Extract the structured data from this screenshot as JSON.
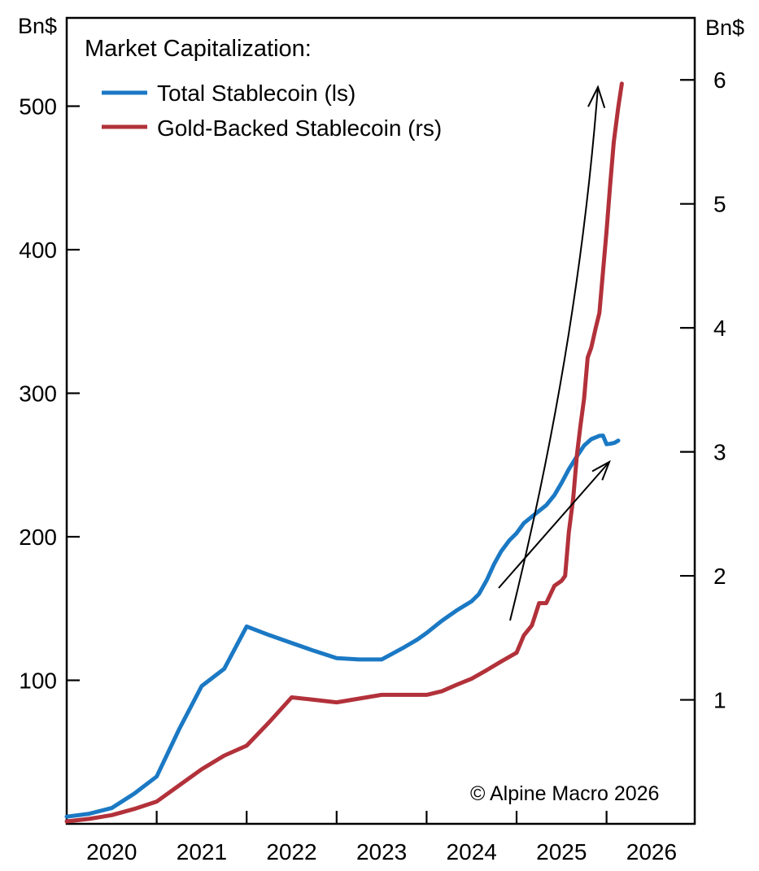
{
  "title": "Market Capitalization:",
  "copyright": "© Alpine Macro 2026",
  "colors": {
    "total_stablecoin": "#1b79c4",
    "gold_stablecoin": "#b2313a",
    "annotation": "#000000"
  },
  "legend": [
    {
      "label": "Total Stablecoin (ls)",
      "color": "#1b79c4"
    },
    {
      "label": "Gold-Backed Stablecoin (rs)",
      "color": "#b2313a"
    }
  ],
  "left_axis": {
    "unit": "Bn$",
    "ticks": [
      500,
      400,
      300,
      200,
      100
    ],
    "range": [
      0,
      561.5
    ]
  },
  "right_axis": {
    "unit": "Bn$",
    "ticks": [
      6,
      5,
      4,
      3,
      2,
      1
    ],
    "range": [
      0,
      6.5
    ]
  },
  "x_axis": {
    "range": [
      2020,
      2026.98
    ],
    "boundary_tick_years": [
      2021,
      2022,
      2023,
      2024,
      2025,
      2026
    ],
    "year_labels": [
      "2020",
      "2021",
      "2022",
      "2023",
      "2024",
      "2025",
      "2026"
    ]
  },
  "chart_data": {
    "type": "line",
    "title": "Market Capitalization:",
    "xlabel": "",
    "ylabel_left": "Bn$",
    "ylabel_right": "Bn$",
    "xlim": [
      2020,
      2026.98
    ],
    "left_ylim": [
      0,
      561.5
    ],
    "right_ylim": [
      0,
      6.5
    ],
    "grid": false,
    "legend_position": "upper-left-inside",
    "series": [
      {
        "name": "Total Stablecoin (ls)",
        "axis": "left",
        "color": "#1b79c4",
        "width": 5,
        "points": [
          [
            2020.0,
            5
          ],
          [
            2020.25,
            7
          ],
          [
            2020.5,
            11
          ],
          [
            2020.75,
            21
          ],
          [
            2021.0,
            33
          ],
          [
            2021.25,
            66
          ],
          [
            2021.5,
            96
          ],
          [
            2021.75,
            108
          ],
          [
            2022.0,
            137.5
          ],
          [
            2022.25,
            131.5
          ],
          [
            2022.5,
            126
          ],
          [
            2022.75,
            120.5
          ],
          [
            2023.0,
            115.5
          ],
          [
            2023.25,
            114.5
          ],
          [
            2023.5,
            114.5
          ],
          [
            2023.75,
            123
          ],
          [
            2023.9,
            128.5
          ],
          [
            2024.0,
            133
          ],
          [
            2024.08,
            137
          ],
          [
            2024.17,
            141.5
          ],
          [
            2024.25,
            145
          ],
          [
            2024.33,
            148.5
          ],
          [
            2024.42,
            152
          ],
          [
            2024.5,
            155
          ],
          [
            2024.58,
            160
          ],
          [
            2024.67,
            170
          ],
          [
            2024.75,
            181
          ],
          [
            2024.83,
            190
          ],
          [
            2024.92,
            197.5
          ],
          [
            2025.0,
            202.5
          ],
          [
            2025.08,
            209.5
          ],
          [
            2025.17,
            214
          ],
          [
            2025.25,
            218
          ],
          [
            2025.33,
            222
          ],
          [
            2025.42,
            229
          ],
          [
            2025.5,
            237.5
          ],
          [
            2025.58,
            247
          ],
          [
            2025.67,
            256
          ],
          [
            2025.75,
            263.5
          ],
          [
            2025.83,
            268
          ],
          [
            2025.92,
            270.3
          ],
          [
            2025.96,
            270.5
          ],
          [
            2026.0,
            264.5
          ],
          [
            2026.04,
            264.8
          ],
          [
            2026.09,
            265.5
          ],
          [
            2026.13,
            267
          ]
        ]
      },
      {
        "name": "Gold-Backed Stablecoin (rs)",
        "axis": "right",
        "color": "#b2313a",
        "width": 5,
        "points": [
          [
            2020.0,
            0.02
          ],
          [
            2020.25,
            0.04
          ],
          [
            2020.5,
            0.07
          ],
          [
            2020.75,
            0.12
          ],
          [
            2021.0,
            0.18
          ],
          [
            2021.25,
            0.31
          ],
          [
            2021.5,
            0.44
          ],
          [
            2021.75,
            0.55
          ],
          [
            2022.0,
            0.63
          ],
          [
            2022.25,
            0.82
          ],
          [
            2022.5,
            1.02
          ],
          [
            2022.75,
            1.0
          ],
          [
            2023.0,
            0.98
          ],
          [
            2023.25,
            1.01
          ],
          [
            2023.5,
            1.04
          ],
          [
            2023.75,
            1.04
          ],
          [
            2024.0,
            1.04
          ],
          [
            2024.17,
            1.07
          ],
          [
            2024.33,
            1.12
          ],
          [
            2024.5,
            1.17
          ],
          [
            2024.67,
            1.24
          ],
          [
            2024.83,
            1.31
          ],
          [
            2025.0,
            1.38
          ],
          [
            2025.08,
            1.52
          ],
          [
            2025.17,
            1.6
          ],
          [
            2025.25,
            1.78
          ],
          [
            2025.33,
            1.78
          ],
          [
            2025.42,
            1.92
          ],
          [
            2025.5,
            1.96
          ],
          [
            2025.54,
            2.0
          ],
          [
            2025.58,
            2.35
          ],
          [
            2025.63,
            2.63
          ],
          [
            2025.67,
            2.97
          ],
          [
            2025.71,
            3.21
          ],
          [
            2025.75,
            3.43
          ],
          [
            2025.79,
            3.76
          ],
          [
            2025.83,
            3.84
          ],
          [
            2025.88,
            4.0
          ],
          [
            2025.92,
            4.12
          ],
          [
            2025.96,
            4.45
          ],
          [
            2026.0,
            4.78
          ],
          [
            2026.04,
            5.15
          ],
          [
            2026.08,
            5.5
          ],
          [
            2026.13,
            5.78
          ],
          [
            2026.17,
            5.97
          ]
        ]
      }
    ],
    "annotations": [
      {
        "name": "steep-up-arrow",
        "shape": "curve",
        "from": [
          627,
          763
        ],
        "ctrl": [
          710,
          430
        ],
        "to": [
          735,
          107
        ],
        "head_len": 27,
        "head_angle": 22
      },
      {
        "name": "diagonal-up-arrow",
        "shape": "line",
        "from": [
          613,
          723
        ],
        "to": [
          749,
          568
        ],
        "head_len": 24,
        "head_angle": 20
      }
    ]
  }
}
